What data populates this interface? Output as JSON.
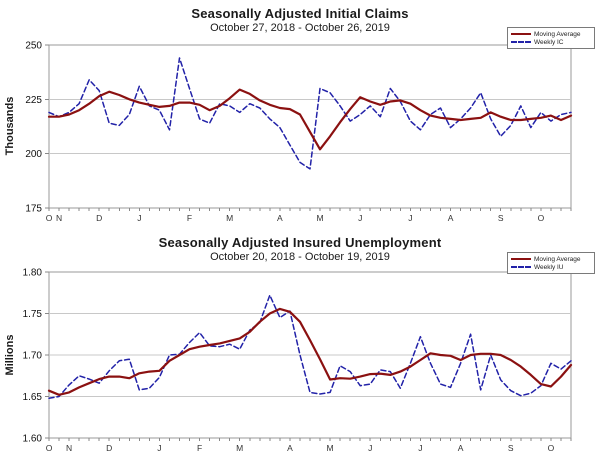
{
  "chart_data": [
    {
      "type": "line",
      "title": "Seasonally Adjusted Initial Claims",
      "subtitle": "October 27, 2018 - October 26, 2019",
      "ylabel": "Thousands",
      "ylim": [
        175,
        250
      ],
      "y_ticks": [
        "250",
        "225",
        "200",
        "175"
      ],
      "y_tick_values": [
        250,
        225,
        200,
        175
      ],
      "gridline_values": [
        225,
        200
      ],
      "x_tick_labels": [
        "O",
        "N",
        "D",
        "J",
        "F",
        "M",
        "A",
        "M",
        "J",
        "J",
        "A",
        "S",
        "O"
      ],
      "x_tick_indices": [
        0,
        1,
        5,
        9,
        14,
        18,
        23,
        27,
        31,
        36,
        40,
        45,
        49
      ],
      "n_points": 53,
      "grid": true,
      "legend_position": "top-right",
      "series": [
        {
          "name": "Moving Average",
          "color": "#8B1111",
          "style": "solid",
          "values": [
            217,
            217,
            218,
            220,
            223,
            226.5,
            228.5,
            227,
            225,
            223.5,
            222.5,
            221.5,
            222,
            223.5,
            223.5,
            222.5,
            220,
            222,
            225.5,
            229.5,
            227.5,
            224.5,
            222.5,
            221,
            220.5,
            218,
            210,
            202,
            208,
            214.5,
            220.5,
            226,
            224,
            222.5,
            224,
            224.5,
            223,
            220,
            217.5,
            216.5,
            216,
            215.5,
            216,
            216.5,
            219,
            217,
            215.5,
            215.5,
            216,
            216.5,
            217.5,
            215.5,
            217.5
          ]
        },
        {
          "name": "Weekly IC",
          "color": "#2222A8",
          "style": "dashed",
          "values": [
            219,
            217,
            219,
            223,
            234,
            229,
            214,
            213,
            218,
            231,
            222,
            220,
            211,
            244,
            230,
            216,
            214,
            223,
            222,
            219,
            223,
            221,
            216,
            212,
            204,
            196,
            193,
            230,
            228,
            222,
            215,
            218,
            222,
            217,
            230,
            224,
            215,
            211,
            218,
            221,
            212,
            216,
            221,
            228,
            216,
            208,
            213,
            222,
            212,
            219,
            215,
            218,
            219
          ]
        }
      ]
    },
    {
      "type": "line",
      "title": "Seasonally Adjusted Insured Unemployment",
      "subtitle": "October 20, 2018 - October 19, 2019",
      "ylabel": "Millions",
      "ylim": [
        1.6,
        1.8
      ],
      "y_ticks": [
        "1.80",
        "1.75",
        "1.70",
        "1.65",
        "1.60"
      ],
      "y_tick_values": [
        1.8,
        1.75,
        1.7,
        1.65,
        1.6
      ],
      "gridline_values": [
        1.75,
        1.7,
        1.65
      ],
      "x_tick_labels": [
        "O",
        "N",
        "D",
        "J",
        "F",
        "M",
        "A",
        "M",
        "J",
        "J",
        "A",
        "S",
        "O"
      ],
      "x_tick_indices": [
        0,
        2,
        6,
        11,
        15,
        19,
        24,
        28,
        32,
        37,
        41,
        46,
        50
      ],
      "n_points": 53,
      "grid": true,
      "legend_position": "top-right",
      "series": [
        {
          "name": "Moving Average",
          "color": "#8B1111",
          "style": "solid",
          "values": [
            1.657,
            1.652,
            1.655,
            1.661,
            1.666,
            1.671,
            1.674,
            1.674,
            1.672,
            1.678,
            1.68,
            1.681,
            1.693,
            1.7,
            1.707,
            1.71,
            1.712,
            1.714,
            1.717,
            1.72,
            1.728,
            1.74,
            1.75,
            1.7555,
            1.752,
            1.74,
            1.718,
            1.695,
            1.6705,
            1.672,
            1.6715,
            1.674,
            1.677,
            1.6775,
            1.676,
            1.68,
            1.686,
            1.694,
            1.702,
            1.7,
            1.699,
            1.694,
            1.7,
            1.7015,
            1.7015,
            1.7,
            1.694,
            1.686,
            1.676,
            1.665,
            1.662,
            1.674,
            1.688
          ]
        },
        {
          "name": "Weekly IU",
          "color": "#2222A8",
          "style": "dashed",
          "values": [
            1.648,
            1.65,
            1.664,
            1.675,
            1.671,
            1.666,
            1.681,
            1.693,
            1.695,
            1.658,
            1.66,
            1.673,
            1.7,
            1.701,
            1.715,
            1.727,
            1.711,
            1.71,
            1.713,
            1.707,
            1.73,
            1.739,
            1.772,
            1.745,
            1.753,
            1.7,
            1.655,
            1.653,
            1.655,
            1.687,
            1.68,
            1.663,
            1.665,
            1.682,
            1.68,
            1.66,
            1.69,
            1.722,
            1.69,
            1.665,
            1.661,
            1.69,
            1.725,
            1.658,
            1.7,
            1.67,
            1.657,
            1.651,
            1.654,
            1.663,
            1.69,
            1.683,
            1.693
          ]
        }
      ]
    }
  ]
}
